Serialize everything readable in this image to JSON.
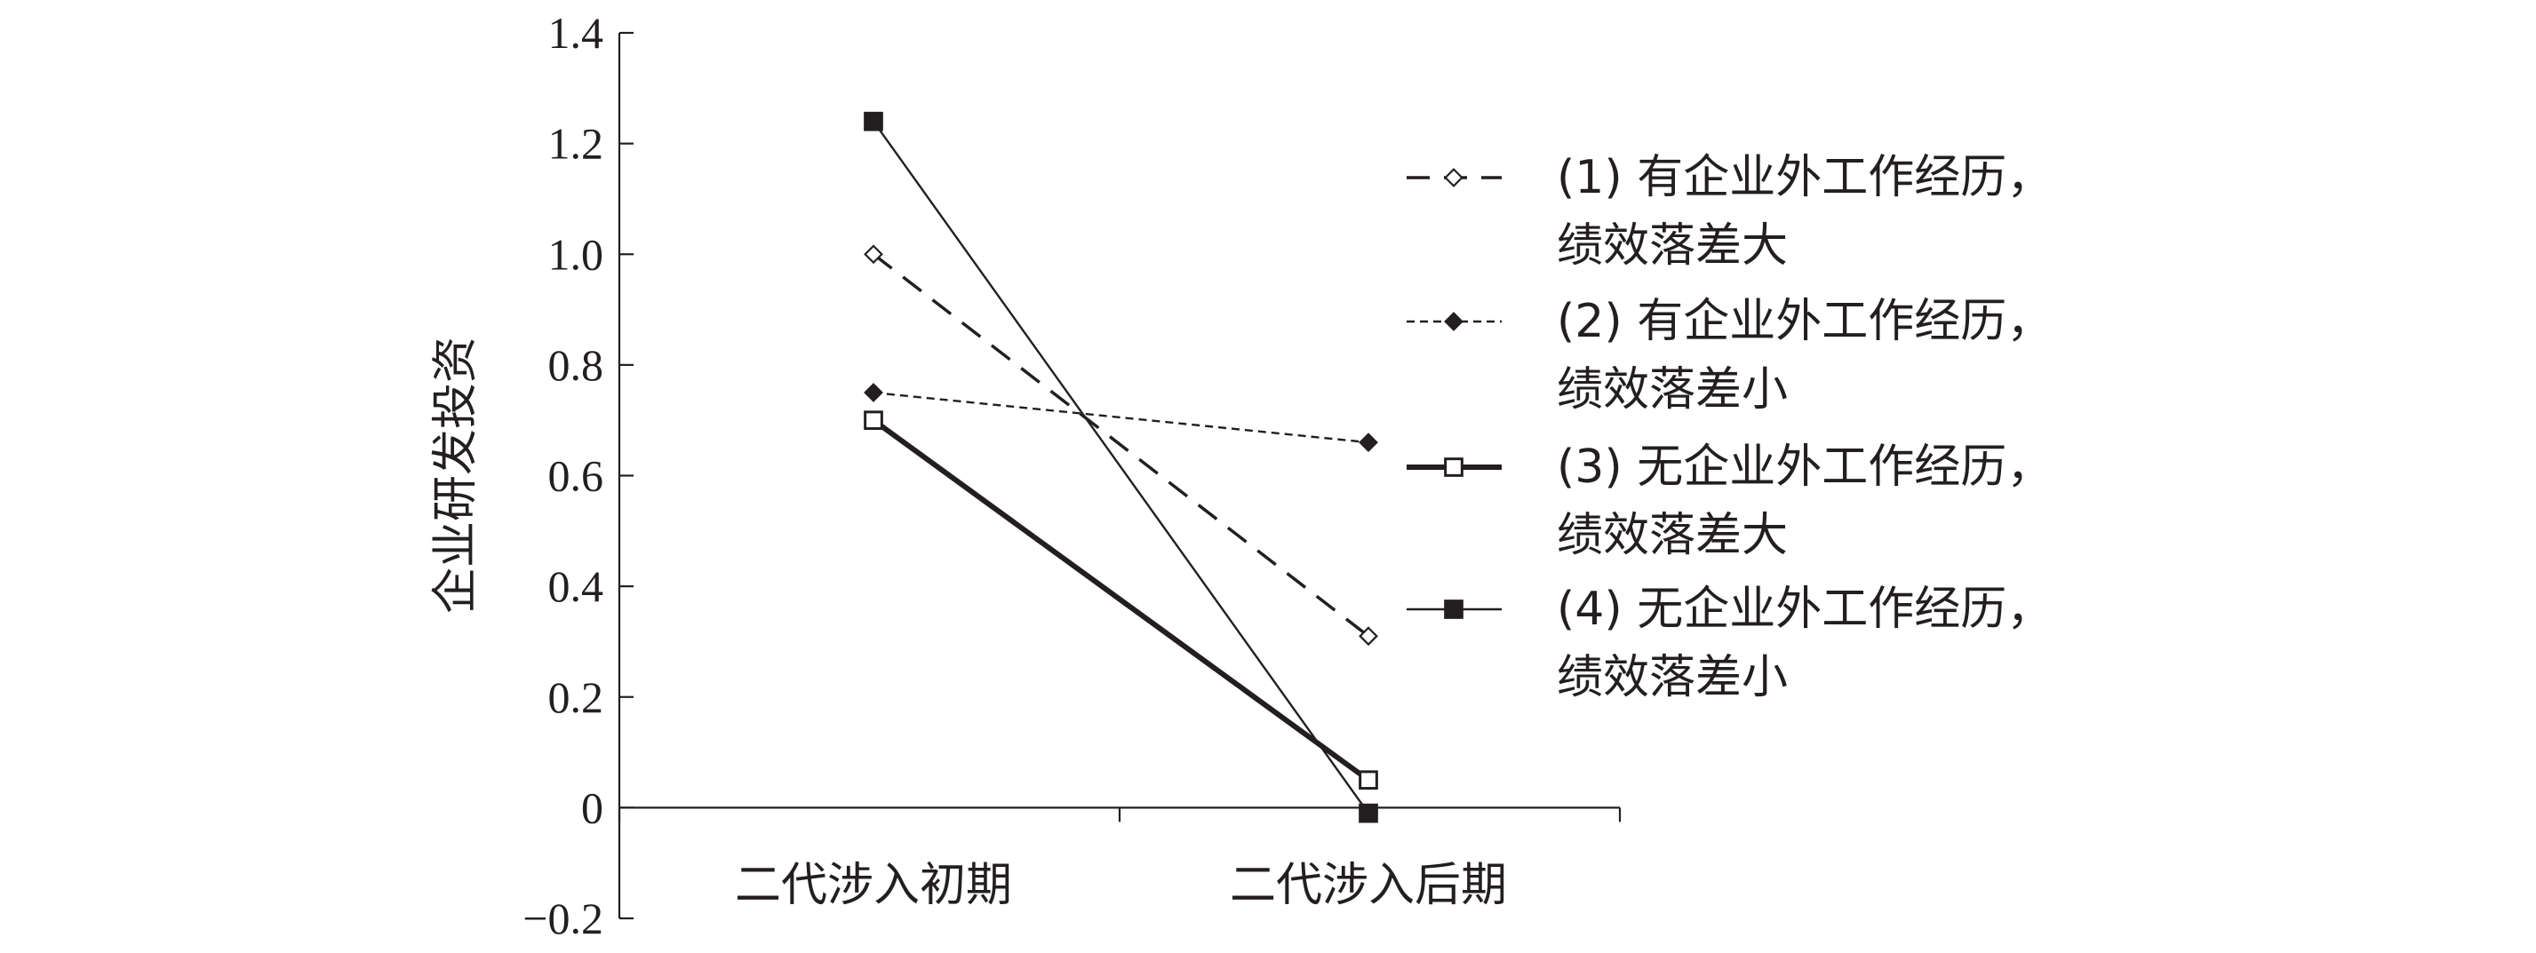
{
  "chart_data": {
    "type": "line",
    "title": "",
    "xlabel": "",
    "ylabel": "企业研发投资",
    "categories": [
      "二代涉入初期",
      "二代涉入后期"
    ],
    "ylim": [
      -0.2,
      1.4
    ],
    "yticks": [
      -0.2,
      0,
      0.2,
      0.4,
      0.6,
      0.8,
      1.0,
      1.2,
      1.4
    ],
    "ytick_labels": [
      "−0.2",
      "0",
      "0.2",
      "0.4",
      "0.6",
      "0.8",
      "1.0",
      "1.2",
      "1.4"
    ],
    "grid": false,
    "legend_position": "right",
    "series": [
      {
        "name": "(1) 有企业外工作经历，绩效落差大",
        "legend_lines": [
          "(1) 有企业外工作经历，",
          "绩效落差大"
        ],
        "values": [
          1.0,
          0.31
        ],
        "line_style": "dashed",
        "marker": "open-diamond",
        "color": "#231f20"
      },
      {
        "name": "(2) 有企业外工作经历，绩效落差小",
        "legend_lines": [
          "(2) 有企业外工作经历，",
          "绩效落差小"
        ],
        "values": [
          0.75,
          0.66
        ],
        "line_style": "dotted",
        "marker": "filled-diamond",
        "color": "#231f20"
      },
      {
        "name": "(3) 无企业外工作经历，绩效落差大",
        "legend_lines": [
          "(3) 无企业外工作经历，",
          "绩效落差大"
        ],
        "values": [
          0.7,
          0.05
        ],
        "line_style": "solid-thick",
        "marker": "open-square",
        "color": "#231f20"
      },
      {
        "name": "(4) 无企业外工作经历，绩效落差小",
        "legend_lines": [
          "(4) 无企业外工作经历，",
          "绩效落差小"
        ],
        "values": [
          1.24,
          -0.01
        ],
        "line_style": "solid-thin",
        "marker": "filled-square",
        "color": "#231f20"
      }
    ]
  }
}
